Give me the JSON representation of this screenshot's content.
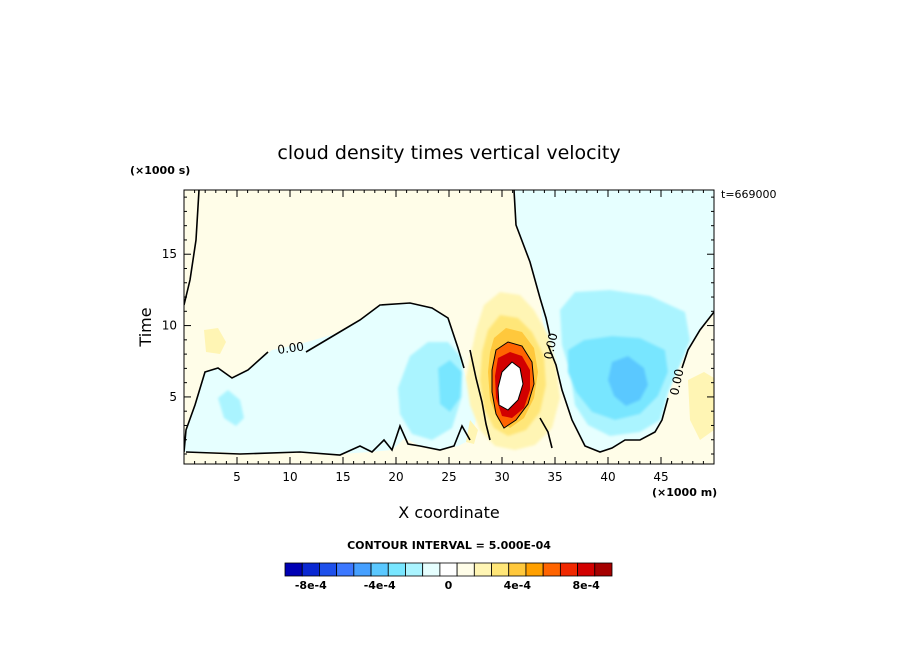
{
  "chart_data": {
    "type": "heatmap",
    "title": "cloud density times vertical velocity",
    "xlabel": "X coordinate",
    "ylabel": "Time",
    "x_unit": "(×1000 m)",
    "y_unit": "(×1000 s)",
    "time_annotation": "t=669000",
    "xlim": [
      0,
      50
    ],
    "ylim": [
      0.3,
      19.5
    ],
    "x_ticks": [
      "5",
      "10",
      "15",
      "20",
      "25",
      "30",
      "35",
      "40",
      "45"
    ],
    "x_tick_values": [
      5,
      10,
      15,
      20,
      25,
      30,
      35,
      40,
      45
    ],
    "y_ticks": [
      "5",
      "10",
      "15"
    ],
    "y_tick_values": [
      5,
      10,
      15
    ],
    "contour_interval_text": "CONTOUR INTERVAL = 5.000E-04",
    "contour_labels": [
      "0.00",
      "0.00",
      "0.00"
    ],
    "colorbar": {
      "tick_labels": [
        "-8e-4",
        "-4e-4",
        "0",
        "4e-4",
        "8e-4"
      ],
      "colors": [
        "#0000b4",
        "#0a28d2",
        "#1e50eb",
        "#3c78ff",
        "#46a0ff",
        "#5ac8ff",
        "#78e6ff",
        "#aaf4ff",
        "#e6ffff",
        "#ffffff",
        "#fffde8",
        "#fff5b4",
        "#ffe678",
        "#ffc83c",
        "#ffa000",
        "#ff6400",
        "#f02800",
        "#d20000",
        "#a50000"
      ]
    },
    "regions": [
      {
        "x": 4,
        "y": 4,
        "value": -0.00015
      },
      {
        "x": 24,
        "y": 6,
        "value": -0.0003
      },
      {
        "x": 31,
        "y": 6,
        "value": 0.0012
      },
      {
        "x": 40,
        "y": 6,
        "value": -0.0004
      },
      {
        "x": 40,
        "y": 10,
        "value": -0.0002
      },
      {
        "x": 2.5,
        "y": 9.5,
        "value": 0.0001
      },
      {
        "x": 48,
        "y": 4,
        "value": 0.0001
      }
    ]
  }
}
